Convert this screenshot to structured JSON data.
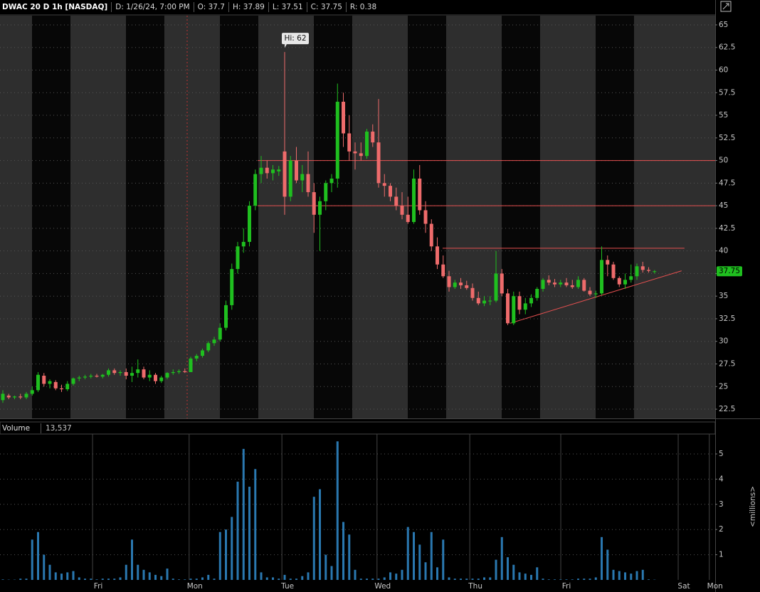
{
  "chart_data": [
    {
      "type": "candlestick",
      "title": "DWAC 20 D 1h [NASDAQ]",
      "info": [
        "D: 1/26/24, 7:00 PM",
        "O: 37.7",
        "H: 37.89",
        "L: 37.51",
        "C: 37.75",
        "R: 0.38"
      ],
      "open": [
        23.5,
        24.0,
        23.8,
        23.9,
        23.8,
        24.2,
        24.6,
        26.2,
        25.3,
        25.5,
        24.8,
        24.7,
        25.3,
        25.9,
        26.0,
        26.1,
        26.2,
        26.1,
        26.3,
        26.8,
        26.5,
        26.6,
        26.2,
        26.5,
        26.9,
        26.0,
        26.3,
        25.6,
        26.0,
        26.5,
        26.6,
        26.7,
        26.6,
        28.1,
        28.4,
        29.0,
        29.8,
        30.2,
        31.5,
        34.0,
        38.0,
        40.5,
        41.0,
        45.0,
        48.5,
        49.2,
        48.6,
        48.8,
        51.0,
        46.0,
        50.0,
        47.8,
        48.5,
        46.5,
        44.0,
        45.5,
        47.5,
        48.0,
        56.5,
        53.0,
        51.0,
        50.8,
        50.5,
        53.2,
        52.0,
        47.5,
        47.2,
        46.0,
        45.0,
        44.0,
        43.2,
        48.0,
        44.5,
        43.0,
        40.5,
        38.5,
        37.2,
        36.0,
        36.5,
        36.2,
        35.9,
        34.8,
        34.2,
        34.5,
        34.5,
        37.5,
        35.3,
        32.0,
        35.0,
        33.5,
        34.2,
        34.8,
        35.8,
        36.8,
        36.5,
        36.3,
        36.5,
        36.2,
        36.0,
        36.8,
        35.6,
        35.2,
        35.3,
        39.0,
        38.5,
        37.0,
        36.3,
        36.8,
        37.2,
        38.3,
        37.9,
        37.7
      ],
      "high": [
        24.6,
        24.2,
        24.0,
        24.2,
        24.4,
        25.0,
        26.6,
        26.5,
        25.8,
        25.7,
        25.2,
        25.6,
        26.0,
        26.2,
        26.3,
        26.4,
        26.4,
        26.4,
        27.0,
        27.0,
        26.8,
        27.0,
        27.2,
        28.0,
        27.2,
        26.8,
        26.5,
        26.2,
        26.6,
        26.9,
        26.9,
        27.0,
        28.3,
        28.6,
        29.2,
        30.0,
        30.5,
        32.0,
        34.5,
        38.6,
        41.0,
        42.5,
        45.5,
        49.0,
        50.5,
        50.0,
        49.5,
        49.4,
        62.0,
        50.5,
        51.5,
        49.5,
        51.0,
        47.5,
        46.0,
        47.8,
        48.5,
        58.5,
        57.5,
        55.0,
        52.0,
        52.0,
        53.5,
        54.0,
        56.8,
        48.5,
        47.5,
        47.0,
        46.5,
        46.0,
        49.0,
        49.5,
        45.5,
        43.5,
        41.5,
        39.5,
        37.8,
        36.8,
        37.0,
        36.7,
        36.4,
        35.5,
        35.0,
        35.0,
        40.0,
        38.0,
        35.8,
        35.5,
        35.5,
        34.8,
        35.2,
        36.0,
        37.0,
        37.3,
        36.9,
        36.8,
        37.0,
        36.8,
        37.2,
        37.0,
        36.0,
        35.6,
        40.5,
        39.5,
        38.8,
        37.2,
        37.5,
        38.5,
        38.6,
        38.8,
        38.2,
        37.89
      ],
      "low": [
        23.2,
        23.6,
        23.6,
        23.6,
        23.6,
        24.0,
        24.4,
        25.0,
        24.8,
        24.6,
        24.4,
        24.5,
        25.1,
        25.6,
        25.8,
        25.9,
        26.0,
        25.9,
        26.1,
        26.3,
        26.2,
        25.8,
        25.5,
        26.0,
        25.8,
        25.6,
        25.3,
        25.4,
        25.8,
        26.3,
        26.4,
        26.5,
        26.6,
        27.8,
        28.2,
        28.8,
        29.5,
        30.0,
        31.2,
        33.5,
        37.5,
        39.8,
        40.5,
        44.5,
        47.5,
        48.0,
        47.8,
        48.3,
        44.0,
        45.5,
        47.5,
        46.5,
        46.0,
        42.0,
        40.0,
        44.5,
        46.5,
        47.0,
        51.5,
        50.0,
        49.0,
        50.0,
        50.2,
        51.5,
        47.0,
        46.0,
        45.5,
        44.5,
        43.5,
        43.0,
        43.0,
        44.0,
        42.0,
        40.0,
        38.0,
        37.0,
        35.5,
        35.8,
        35.8,
        35.7,
        34.5,
        34.0,
        33.9,
        34.0,
        34.3,
        35.0,
        31.8,
        31.8,
        33.0,
        33.0,
        33.8,
        34.5,
        35.5,
        36.2,
        36.0,
        36.0,
        36.0,
        35.8,
        35.8,
        35.5,
        35.0,
        34.8,
        35.1,
        37.2,
        36.8,
        36.0,
        35.8,
        36.5,
        36.8,
        37.6,
        37.6,
        37.51
      ],
      "close": [
        24.2,
        23.8,
        23.9,
        23.8,
        24.2,
        24.6,
        26.3,
        25.3,
        25.6,
        24.8,
        24.7,
        25.3,
        25.9,
        26.0,
        26.1,
        26.2,
        26.1,
        26.3,
        26.8,
        26.5,
        26.6,
        26.2,
        26.5,
        26.9,
        26.0,
        26.3,
        25.6,
        26.0,
        26.5,
        26.6,
        26.7,
        26.6,
        28.1,
        28.4,
        29.0,
        29.8,
        30.2,
        31.5,
        34.0,
        38.0,
        40.5,
        41.0,
        45.0,
        48.5,
        49.2,
        48.6,
        49.0,
        49.0,
        46.0,
        50.0,
        47.8,
        48.5,
        46.5,
        44.0,
        45.5,
        47.5,
        48.0,
        56.5,
        53.0,
        51.0,
        50.8,
        50.5,
        53.2,
        52.0,
        47.5,
        47.2,
        46.0,
        45.0,
        44.0,
        43.2,
        48.0,
        44.5,
        43.0,
        40.5,
        38.5,
        37.2,
        36.0,
        36.5,
        36.2,
        35.9,
        34.8,
        34.2,
        34.5,
        34.5,
        37.5,
        35.3,
        32.0,
        35.0,
        33.5,
        34.2,
        34.8,
        35.8,
        36.8,
        36.5,
        36.3,
        36.5,
        36.2,
        36.0,
        36.8,
        35.6,
        35.2,
        35.3,
        39.0,
        38.5,
        37.0,
        36.3,
        36.8,
        37.2,
        38.3,
        37.9,
        37.8,
        37.75
      ],
      "up_color": "#1fbf1f",
      "down_color": "#ee6b6b",
      "xlim": [
        -0.485,
        121.33
      ],
      "ylim": [
        21.48,
        66.02
      ],
      "yticks": [
        22.5,
        25,
        27.5,
        30,
        32.5,
        35,
        37.5,
        40,
        42.5,
        45,
        47.5,
        50,
        52.5,
        55,
        57.5,
        60,
        62.5,
        65
      ],
      "grid": true,
      "last_price": 37.75,
      "annotations": [
        {
          "text": "Hi: 62",
          "x": 48,
          "y": 62
        }
      ],
      "trendlines": [
        {
          "x1": 43.4,
          "y1": 50,
          "x2": 121.33,
          "y2": 50
        },
        {
          "x1": 43.4,
          "y1": 45,
          "x2": 121.33,
          "y2": 45
        },
        {
          "x1": 74.9,
          "y1": 40.3,
          "x2": 116.1,
          "y2": 40.3
        },
        {
          "x1": 86.4,
          "y1": 32.0,
          "x2": 115.6,
          "y2": 37.8
        }
      ],
      "trendline_color": "#e55050"
    },
    {
      "type": "bar",
      "title": "Volume",
      "subtitle": "13,537",
      "y_label": "<millions>",
      "values": [
        0.02,
        0.01,
        0.01,
        0.05,
        0.05,
        1.6,
        1.9,
        1.0,
        0.6,
        0.3,
        0.25,
        0.3,
        0.35,
        0.1,
        0.05,
        0.05,
        0.02,
        0.05,
        0.05,
        0.05,
        0.1,
        0.6,
        1.6,
        0.6,
        0.4,
        0.3,
        0.2,
        0.15,
        0.45,
        0.05,
        0.02,
        0.02,
        0.05,
        0.05,
        0.1,
        0.2,
        0.05,
        1.9,
        2.0,
        2.5,
        3.9,
        5.2,
        3.7,
        4.4,
        0.3,
        0.1,
        0.1,
        0.05,
        0.2,
        0.05,
        0.05,
        0.15,
        0.3,
        3.3,
        3.6,
        1.0,
        0.55,
        5.5,
        2.3,
        1.8,
        0.4,
        0.05,
        0.05,
        0.05,
        0.05,
        0.1,
        0.3,
        0.25,
        0.4,
        2.1,
        1.9,
        1.4,
        0.7,
        1.9,
        0.5,
        1.6,
        0.1,
        0.05,
        0.05,
        0.05,
        0.05,
        0.05,
        0.1,
        0.1,
        0.8,
        1.7,
        0.9,
        0.6,
        0.3,
        0.25,
        0.2,
        0.5,
        0.05,
        0.02,
        0.02,
        0.02,
        0.02,
        0.02,
        0.05,
        0.05,
        0.05,
        0.1,
        1.7,
        1.2,
        0.4,
        0.35,
        0.3,
        0.25,
        0.35,
        0.4,
        0.02,
        0.01
      ],
      "color": "#2a78b0",
      "xlim": [
        -0.485,
        121.33
      ],
      "xticks": [
        {
          "value": 16.25,
          "label": "Fri"
        },
        {
          "value": 32.7,
          "label": "Mon"
        },
        {
          "value": 48.5,
          "label": "Tue"
        },
        {
          "value": 64.7,
          "label": "Wed"
        },
        {
          "value": 80.5,
          "label": "Thu"
        },
        {
          "value": 96,
          "label": "Fri"
        },
        {
          "value": 116,
          "label": "Sat"
        },
        {
          "value": 121.3,
          "label": "Mon"
        }
      ],
      "ylim": [
        0,
        5.79
      ],
      "yticks": [
        1,
        2,
        3,
        4,
        5
      ],
      "grid": true
    }
  ]
}
